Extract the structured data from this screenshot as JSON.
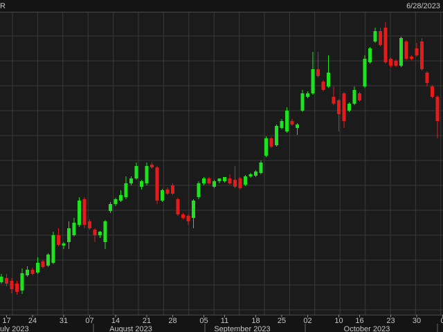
{
  "header": {
    "left": "R",
    "right": "6/28/2023"
  },
  "months": [
    "uly 2023",
    "August 2023",
    "September 2023",
    "October 2023"
  ],
  "chart_data": {
    "type": "candlestick",
    "open": [
      72,
      78,
      74,
      70,
      60,
      82,
      90,
      86,
      102,
      96,
      100,
      140,
      125,
      130,
      140,
      155,
      192,
      160,
      148,
      140,
      130,
      175,
      185,
      190,
      195,
      215,
      222,
      210,
      215,
      242,
      238,
      190,
      206,
      212,
      192,
      170,
      168,
      165,
      195,
      215,
      222,
      210,
      218,
      218,
      222,
      220,
      222,
      213,
      225,
      226,
      230,
      255,
      280,
      270,
      295,
      290,
      305,
      295,
      320,
      340,
      345,
      380,
      362,
      355,
      340,
      335,
      345,
      320,
      330,
      345,
      355,
      390,
      420,
      435,
      440,
      395,
      392,
      385,
      420,
      398,
      410,
      420,
      375,
      355,
      340
    ],
    "high": [
      84,
      84,
      78,
      74,
      92,
      95,
      93,
      108,
      104,
      114,
      145,
      150,
      130,
      160,
      165,
      195,
      195,
      163,
      150,
      146,
      162,
      188,
      194,
      205,
      225,
      225,
      245,
      220,
      245,
      245,
      240,
      207,
      209,
      215,
      194,
      172,
      170,
      192,
      218,
      224,
      224,
      220,
      222,
      224,
      228,
      240,
      224,
      227,
      230,
      234,
      248,
      283,
      282,
      300,
      308,
      325,
      308,
      302,
      350,
      348,
      405,
      405,
      364,
      400,
      355,
      337,
      347,
      332,
      355,
      347,
      400,
      412,
      440,
      440,
      448,
      397,
      394,
      427,
      422,
      400,
      418,
      425,
      377,
      357,
      342
    ],
    "low": [
      70,
      66,
      56,
      54,
      55,
      80,
      82,
      84,
      92,
      94,
      98,
      124,
      120,
      120,
      138,
      152,
      150,
      148,
      130,
      136,
      120,
      172,
      182,
      188,
      192,
      212,
      220,
      206,
      212,
      236,
      185,
      188,
      198,
      198,
      168,
      163,
      155,
      150,
      192,
      212,
      213,
      208,
      215,
      216,
      213,
      208,
      206,
      211,
      223,
      224,
      228,
      253,
      266,
      268,
      293,
      288,
      298,
      285,
      318,
      338,
      343,
      368,
      348,
      353,
      328,
      290,
      295,
      318,
      328,
      333,
      353,
      388,
      418,
      413,
      388,
      383,
      383,
      383,
      393,
      393,
      398,
      378,
      355,
      338,
      280
    ],
    "close": [
      80,
      70,
      62,
      58,
      85,
      90,
      84,
      100,
      94,
      112,
      140,
      126,
      128,
      150,
      158,
      190,
      155,
      150,
      140,
      145,
      160,
      185,
      192,
      198,
      215,
      222,
      240,
      218,
      240,
      238,
      190,
      205,
      200,
      200,
      170,
      165,
      160,
      190,
      215,
      222,
      215,
      218,
      222,
      224,
      215,
      210,
      208,
      225,
      228,
      232,
      245,
      280,
      268,
      298,
      305,
      320,
      300,
      300,
      345,
      345,
      380,
      370,
      350,
      375,
      330,
      315,
      305,
      330,
      350,
      335,
      395,
      410,
      435,
      415,
      390,
      385,
      385,
      425,
      395,
      395,
      400,
      380,
      360,
      340,
      305
    ],
    "up_color": "#1fe11f",
    "down_color": "#e31b1b",
    "ylim": [
      25,
      462
    ],
    "xticks": [
      {
        "value": 1,
        "label": "17"
      },
      {
        "value": 6,
        "label": "24"
      },
      {
        "value": 12,
        "label": "31"
      },
      {
        "value": 17,
        "label": "07"
      },
      {
        "value": 22,
        "label": "14"
      },
      {
        "value": 28,
        "label": "21"
      },
      {
        "value": 33,
        "label": "28"
      },
      {
        "value": 39,
        "label": "05"
      },
      {
        "value": 43,
        "label": "11"
      },
      {
        "value": 49,
        "label": "18"
      },
      {
        "value": 54,
        "label": "25"
      },
      {
        "value": 59,
        "label": "02"
      },
      {
        "value": 65,
        "label": "10"
      },
      {
        "value": 69,
        "label": "16"
      },
      {
        "value": 75,
        "label": "23"
      },
      {
        "value": 80,
        "label": "30"
      },
      {
        "value": 85,
        "label": "0"
      }
    ]
  }
}
